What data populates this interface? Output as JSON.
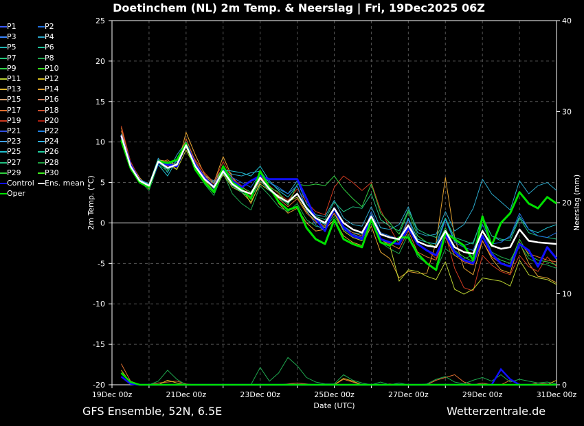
{
  "header": {
    "title": "Doetinchem  (NL)  2m Temp. & Neerslag | Fri, 19Dec2025 06Z"
  },
  "footer": {
    "source": "GFS Ensemble, 52N, 6.5E",
    "site": "Wetterzentrale.de"
  },
  "legend": [
    {
      "label": "P1",
      "color": "#3b5bff"
    },
    {
      "label": "P2",
      "color": "#1f6fe0"
    },
    {
      "label": "P3",
      "color": "#3a86ff"
    },
    {
      "label": "P4",
      "color": "#2aa6c8"
    },
    {
      "label": "P5",
      "color": "#1fb4b4"
    },
    {
      "label": "P6",
      "color": "#1fc49a"
    },
    {
      "label": "P7",
      "color": "#22c77a"
    },
    {
      "label": "P8",
      "color": "#1fa84f"
    },
    {
      "label": "P9",
      "color": "#2fd24a"
    },
    {
      "label": "P10",
      "color": "#33e01f"
    },
    {
      "label": "P11",
      "color": "#b8d030"
    },
    {
      "label": "P12",
      "color": "#d8c020"
    },
    {
      "label": "P13",
      "color": "#e0b830"
    },
    {
      "label": "P14",
      "color": "#e0a030"
    },
    {
      "label": "P15",
      "color": "#d8a070"
    },
    {
      "label": "P16",
      "color": "#d08060"
    },
    {
      "label": "P17",
      "color": "#e07030"
    },
    {
      "label": "P18",
      "color": "#d05030"
    },
    {
      "label": "P19",
      "color": "#d03a20"
    },
    {
      "label": "P20",
      "color": "#b02010"
    },
    {
      "label": "P21",
      "color": "#3050e0"
    },
    {
      "label": "P22",
      "color": "#2080e0"
    },
    {
      "label": "P23",
      "color": "#40a0ff"
    },
    {
      "label": "P24",
      "color": "#30b0e0"
    },
    {
      "label": "P25",
      "color": "#20c0d0"
    },
    {
      "label": "P26",
      "color": "#20d0a0"
    },
    {
      "label": "P27",
      "color": "#20c080"
    },
    {
      "label": "P28",
      "color": "#20a040"
    },
    {
      "label": "P29",
      "color": "#30d040"
    },
    {
      "label": "P30",
      "color": "#40f020"
    },
    {
      "label": "Control",
      "color": "#1010ff"
    },
    {
      "label": "Ens. mean",
      "color": "#ffffff"
    },
    {
      "label": "Oper",
      "color": "#00e000"
    }
  ],
  "chart_data": {
    "type": "line",
    "title": "Doetinchem  (NL)  2m Temp. & Neerslag | Fri, 19Dec2025 06Z",
    "xlabel": "Date (UTC)",
    "ylabel": "2m Temp. (°C)",
    "y2label": "Neerslag (mm)",
    "xlim_hours": [
      0,
      288
    ],
    "ylim": [
      -20,
      25
    ],
    "y2lim": [
      0,
      40
    ],
    "yticks": [
      -20,
      -15,
      -10,
      -5,
      0,
      5,
      10,
      15,
      20,
      25
    ],
    "y2ticks": [
      0,
      10,
      20,
      30,
      40
    ],
    "xticks": [
      "19Dec 00z",
      "21Dec 00z",
      "23Dec 00z",
      "25Dec 00z",
      "27Dec 00z",
      "29Dec 00z",
      "31Dec 00z"
    ],
    "grid": true,
    "zero_line": true,
    "legend_position": "left",
    "x_hours": [
      6,
      12,
      18,
      24,
      30,
      36,
      42,
      48,
      54,
      60,
      66,
      72,
      78,
      84,
      90,
      96,
      102,
      108,
      114,
      120,
      126,
      132,
      138,
      144,
      150,
      156,
      162,
      168,
      174,
      180,
      186,
      192,
      198,
      204,
      210,
      216,
      222,
      228,
      234,
      240,
      246,
      252,
      258,
      264,
      270,
      276,
      282,
      288
    ],
    "series": [
      {
        "name": "Ens. mean",
        "color": "#ffffff",
        "width": 2.5,
        "values": [
          10.8,
          7.0,
          5.2,
          4.6,
          7.6,
          6.8,
          7.2,
          9.6,
          7.0,
          5.4,
          4.4,
          6.4,
          4.8,
          4.0,
          3.6,
          5.6,
          4.2,
          3.2,
          2.6,
          3.6,
          1.8,
          0.6,
          0.0,
          1.8,
          0.0,
          -0.8,
          -1.2,
          0.8,
          -1.4,
          -1.8,
          -2.0,
          -0.3,
          -2.3,
          -2.8,
          -3.0,
          -1.0,
          -3.0,
          -3.6,
          -3.8,
          -1.0,
          -2.8,
          -3.2,
          -3.0,
          -0.8,
          -2.2,
          -2.4,
          -2.5,
          -2.6
        ]
      },
      {
        "name": "Control",
        "color": "#1010ff",
        "width": 3,
        "values": [
          10.8,
          7.2,
          5.2,
          4.4,
          7.4,
          7.2,
          7.0,
          9.8,
          7.2,
          5.6,
          4.4,
          6.6,
          5.2,
          4.4,
          5.2,
          5.8,
          5.4,
          5.4,
          5.4,
          5.4,
          3.0,
          0.5,
          -1.0,
          1.8,
          -0.5,
          -1.6,
          -2.0,
          0.8,
          -2.0,
          -2.4,
          -2.6,
          -0.6,
          -2.6,
          -3.4,
          -4.0,
          -1.4,
          -3.6,
          -4.6,
          -5.0,
          -1.6,
          -3.8,
          -5.0,
          -5.4,
          -2.6,
          -3.4,
          -5.4,
          -3.0,
          -4.4
        ]
      },
      {
        "name": "Oper",
        "color": "#00e000",
        "width": 3,
        "values": [
          10.2,
          6.8,
          5.0,
          4.4,
          7.6,
          7.4,
          7.8,
          9.8,
          6.6,
          5.0,
          3.8,
          7.0,
          5.0,
          4.2,
          3.0,
          6.4,
          4.4,
          2.6,
          1.6,
          2.0,
          -0.6,
          -2.0,
          -2.6,
          0.4,
          -2.0,
          -2.6,
          -3.0,
          0.4,
          -2.4,
          -2.8,
          -1.8,
          -1.8,
          -3.8,
          -5.0,
          -5.8,
          -1.2,
          -2.0,
          -2.8,
          -4.6,
          0.8,
          -2.8,
          0.0,
          1.2,
          3.8,
          2.4,
          1.8,
          3.2,
          2.4
        ]
      },
      {
        "name": "P4",
        "color": "#2aa6c8",
        "width": 1,
        "values": [
          10.6,
          7.2,
          5.4,
          4.8,
          8.0,
          6.2,
          8.4,
          10.0,
          7.4,
          5.8,
          5.2,
          6.8,
          6.0,
          5.8,
          6.2,
          6.4,
          5.0,
          4.2,
          3.6,
          5.2,
          2.4,
          1.0,
          0.8,
          2.8,
          0.6,
          -0.2,
          -0.4,
          2.0,
          -0.6,
          -0.8,
          -0.2,
          2.0,
          -1.2,
          -1.6,
          -1.4,
          1.4,
          -1.0,
          -0.2,
          1.8,
          5.4,
          3.6,
          2.6,
          1.6,
          5.2,
          3.6,
          4.6,
          5.0,
          4.0
        ]
      },
      {
        "name": "P14",
        "color": "#e0a030",
        "width": 1,
        "values": [
          11.8,
          7.4,
          5.6,
          4.2,
          7.8,
          7.6,
          6.6,
          11.2,
          8.4,
          6.0,
          5.0,
          8.2,
          5.6,
          4.4,
          2.4,
          5.0,
          4.6,
          2.4,
          1.2,
          1.8,
          0.0,
          -1.0,
          -0.8,
          0.4,
          -1.6,
          -2.4,
          -2.8,
          -0.4,
          -3.6,
          -4.4,
          -6.8,
          -6.0,
          -6.2,
          -6.2,
          -2.4,
          5.6,
          -1.8,
          -5.6,
          -6.4,
          -2.2,
          -4.4,
          -5.8,
          -6.2,
          -2.4,
          -5.0,
          -6.6,
          -6.8,
          -7.4
        ]
      },
      {
        "name": "P19",
        "color": "#d03a20",
        "width": 1,
        "values": [
          12.0,
          7.6,
          5.4,
          4.4,
          7.6,
          7.0,
          7.4,
          9.4,
          7.8,
          6.2,
          5.0,
          7.6,
          5.4,
          4.6,
          3.4,
          5.8,
          4.6,
          3.6,
          2.8,
          4.2,
          2.6,
          1.4,
          1.0,
          4.4,
          5.8,
          5.0,
          4.0,
          5.0,
          1.6,
          -0.6,
          -2.6,
          0.4,
          -2.6,
          -3.4,
          -4.4,
          -1.4,
          -5.6,
          -8.0,
          -8.4,
          -4.0,
          -5.2,
          -6.0,
          -6.4,
          -4.0,
          -5.4,
          -6.0,
          -4.2,
          -5.4
        ]
      },
      {
        "name": "P8",
        "color": "#1fa84f",
        "width": 1,
        "values": [
          10.4,
          6.8,
          5.2,
          4.0,
          7.2,
          6.4,
          7.8,
          9.4,
          6.8,
          4.8,
          3.4,
          6.2,
          3.6,
          2.4,
          1.6,
          4.6,
          3.4,
          2.0,
          1.4,
          2.4,
          0.4,
          -0.4,
          -0.6,
          0.8,
          -0.8,
          -1.6,
          -2.0,
          0.2,
          -2.4,
          -3.2,
          -3.8,
          -1.4,
          -4.2,
          -5.0,
          -5.8,
          -3.2,
          -4.0,
          -4.4,
          -4.0,
          -0.8,
          -3.6,
          -4.2,
          -4.6,
          -2.6,
          -4.4,
          -5.0,
          -5.2,
          -5.6
        ]
      },
      {
        "name": "P11",
        "color": "#b8d030",
        "width": 1,
        "values": [
          10.2,
          6.6,
          5.0,
          4.4,
          7.6,
          7.2,
          6.6,
          9.0,
          6.8,
          5.2,
          4.0,
          6.0,
          4.4,
          3.8,
          2.6,
          4.8,
          4.0,
          3.4,
          2.6,
          3.2,
          1.4,
          0.2,
          -0.6,
          1.2,
          -1.0,
          -1.8,
          -2.2,
          0.4,
          -2.0,
          -2.8,
          -7.2,
          -5.8,
          -6.0,
          -6.6,
          -7.0,
          -4.8,
          -8.2,
          -8.8,
          -8.2,
          -6.8,
          -7.0,
          -7.2,
          -7.8,
          -4.6,
          -6.4,
          -6.8,
          -7.0,
          -7.6
        ]
      },
      {
        "name": "P25",
        "color": "#20c0d0",
        "width": 1,
        "values": [
          11.0,
          7.2,
          5.2,
          4.8,
          7.2,
          5.8,
          7.8,
          10.0,
          7.2,
          5.6,
          5.0,
          6.6,
          6.4,
          6.2,
          5.8,
          7.0,
          5.2,
          4.0,
          3.2,
          4.6,
          1.8,
          0.4,
          -0.2,
          1.6,
          -0.4,
          -1.2,
          -1.4,
          1.0,
          -1.4,
          -1.8,
          -2.2,
          0.6,
          -2.0,
          -2.4,
          -2.6,
          0.6,
          -2.2,
          -2.8,
          -2.4,
          0.6,
          -1.6,
          -2.2,
          -1.8,
          0.8,
          -0.8,
          -1.2,
          -0.6,
          -0.2
        ]
      },
      {
        "name": "P27",
        "color": "#20c080",
        "width": 1,
        "values": [
          10.6,
          6.8,
          5.0,
          4.6,
          7.4,
          6.6,
          7.4,
          9.6,
          6.6,
          5.0,
          4.0,
          6.2,
          4.6,
          3.8,
          3.0,
          5.2,
          4.0,
          3.0,
          2.4,
          3.6,
          2.0,
          0.8,
          0.4,
          2.6,
          1.4,
          2.0,
          1.8,
          3.6,
          0.4,
          -0.4,
          -1.0,
          1.6,
          -0.8,
          -1.4,
          -1.8,
          0.6,
          -1.8,
          -2.2,
          -2.6,
          0.8,
          -1.6,
          -2.0,
          -2.2,
          0.6,
          -1.2,
          -1.6,
          -1.8,
          -2.0
        ]
      },
      {
        "name": "P29",
        "color": "#30d040",
        "width": 1,
        "values": [
          10.4,
          6.8,
          5.2,
          4.4,
          7.8,
          7.4,
          7.2,
          9.8,
          7.0,
          5.4,
          4.6,
          6.8,
          5.0,
          4.4,
          3.8,
          5.6,
          4.4,
          3.8,
          2.2,
          4.8,
          4.6,
          4.8,
          4.6,
          5.8,
          4.2,
          3.0,
          2.0,
          4.8,
          1.2,
          0.0,
          -1.4,
          1.4,
          -1.6,
          -2.4,
          -3.0,
          -0.6,
          -3.4,
          -4.2,
          -4.8,
          -1.6,
          -4.0,
          -4.6,
          -5.0,
          -2.0,
          -4.0,
          -4.6,
          -4.8,
          -5.2
        ]
      },
      {
        "name": "P2",
        "color": "#1f6fe0",
        "width": 1,
        "values": [
          10.8,
          7.0,
          5.4,
          4.6,
          7.8,
          6.8,
          7.6,
          9.8,
          7.2,
          5.6,
          4.2,
          6.8,
          5.6,
          5.0,
          4.4,
          6.2,
          5.0,
          4.4,
          3.6,
          4.6,
          1.6,
          -0.2,
          -1.0,
          1.6,
          -0.8,
          -1.4,
          -1.8,
          1.4,
          -1.2,
          -1.6,
          -2.0,
          0.4,
          -2.4,
          -2.8,
          -3.0,
          0.4,
          -2.4,
          -3.0,
          -3.4,
          -0.2,
          -2.6,
          -2.4,
          -1.6,
          1.2,
          -0.8,
          -1.6,
          -1.8,
          -1.2
        ]
      },
      {
        "name": "P17",
        "color": "#e07030",
        "width": 1,
        "values": [
          11.4,
          7.2,
          5.2,
          4.6,
          7.4,
          7.8,
          7.0,
          10.4,
          7.6,
          5.8,
          4.8,
          7.0,
          5.2,
          4.2,
          3.2,
          5.4,
          4.2,
          3.0,
          2.0,
          3.0,
          1.2,
          0.2,
          -0.4,
          1.2,
          -0.6,
          -1.2,
          -1.6,
          0.6,
          -2.0,
          -2.6,
          -3.2,
          -1.0,
          -3.6,
          -4.2,
          -4.6,
          -1.8,
          -4.0,
          -4.8,
          -5.2,
          -2.2,
          -4.2,
          -5.0,
          -5.4,
          -2.4,
          -3.8,
          -4.2,
          -4.6,
          -4.8
        ]
      }
    ],
    "precip_series": [
      {
        "name": "P17",
        "color": "#e07030",
        "values": [
          2.3,
          0.4,
          0,
          0,
          0.2,
          0.3,
          0.4,
          0.1,
          0,
          0,
          0,
          0,
          0,
          0,
          0,
          0,
          0,
          0,
          0.1,
          0.2,
          0.1,
          0,
          0,
          0,
          0.6,
          0.3,
          0,
          0,
          0,
          0.1,
          0,
          0,
          0,
          0,
          0.5,
          0.8,
          1.1,
          0.3,
          0,
          0.2,
          0,
          0,
          0.5,
          0,
          0,
          0.2,
          0.1,
          0
        ]
      },
      {
        "name": "P8",
        "color": "#1fa84f",
        "values": [
          1.2,
          0.3,
          0,
          0,
          0.4,
          1.6,
          0.6,
          0,
          0,
          0,
          0,
          0,
          0,
          0,
          0,
          1.9,
          0.4,
          1.3,
          3.0,
          2.1,
          0.8,
          0.3,
          0.1,
          0.1,
          1.1,
          0.5,
          0.2,
          0,
          0.3,
          0,
          0.2,
          0,
          0,
          0.1,
          0.6,
          0.9,
          0.3,
          0.1,
          0.5,
          0.8,
          0.4,
          1.1,
          0.3,
          0.6,
          0.4,
          0.2,
          0.3,
          0.1
        ]
      },
      {
        "name": "P12",
        "color": "#d8c020",
        "values": [
          1.6,
          0.2,
          0,
          0,
          0,
          0.5,
          0.2,
          0,
          0,
          0,
          0,
          0,
          0,
          0,
          0,
          0,
          0,
          0,
          0,
          0,
          0,
          0,
          0,
          0,
          0.7,
          0.4,
          0,
          0,
          0,
          0,
          0,
          0,
          0,
          0,
          0,
          0,
          0,
          0,
          0,
          0,
          0,
          0,
          0,
          0,
          0,
          0,
          0,
          0.5
        ]
      },
      {
        "name": "Control",
        "color": "#1010ff",
        "values": [
          0.9,
          0.1,
          0,
          0,
          0,
          0,
          0,
          0,
          0,
          0,
          0,
          0,
          0,
          0,
          0,
          0,
          0,
          0,
          0,
          0,
          0,
          0,
          0,
          0,
          0,
          0,
          0,
          0,
          0,
          0,
          0,
          0,
          0,
          0,
          0,
          0,
          0,
          0,
          0,
          0,
          0,
          1.7,
          0.6,
          0,
          0,
          0,
          0,
          0
        ]
      },
      {
        "name": "Oper",
        "color": "#00e000",
        "values": [
          1.3,
          0.3,
          0,
          0,
          0,
          0,
          0,
          0,
          0,
          0,
          0,
          0,
          0,
          0,
          0,
          0,
          0,
          0,
          0,
          0,
          0,
          0,
          0,
          0,
          0,
          0,
          0,
          0,
          0,
          0,
          0,
          0,
          0,
          0,
          0,
          0,
          0,
          0,
          0,
          0,
          0,
          0,
          0,
          0,
          0,
          0,
          0,
          0
        ]
      }
    ]
  }
}
